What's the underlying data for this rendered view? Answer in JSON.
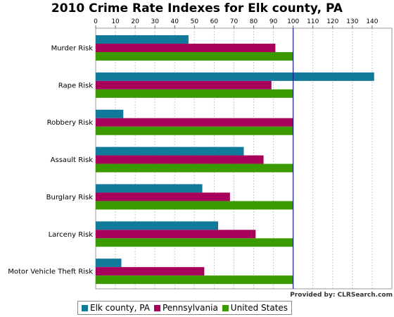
{
  "chart_data": {
    "type": "bar",
    "orientation": "horizontal",
    "title": "2010 Crime Rate Indexes for Elk county, PA",
    "categories": [
      "Murder Risk",
      "Rape Risk",
      "Robbery Risk",
      "Assault Risk",
      "Burglary Risk",
      "Larceny Risk",
      "Motor Vehicle Theft Risk"
    ],
    "series": [
      {
        "name": "Elk county, PA",
        "color": "#117a9a",
        "values": [
          47,
          141,
          14,
          75,
          54,
          62,
          13
        ]
      },
      {
        "name": "Pennsylvania",
        "color": "#a8005a",
        "values": [
          91,
          89,
          100,
          85,
          68,
          81,
          55
        ]
      },
      {
        "name": "United States",
        "color": "#3a9a00",
        "values": [
          100,
          100,
          100,
          100,
          100,
          100,
          100
        ]
      }
    ],
    "xlim": [
      0,
      150
    ],
    "x_ticks": [
      0,
      10,
      20,
      30,
      40,
      50,
      60,
      70,
      80,
      90,
      100,
      110,
      120,
      130,
      140
    ],
    "axis_position": "top",
    "reference_line": 100,
    "reference_line_color": "#1a1a8c",
    "grid": true,
    "legend_position": "bottom"
  },
  "footer": {
    "provided_by": "Provided by: CLRSearch.com"
  }
}
